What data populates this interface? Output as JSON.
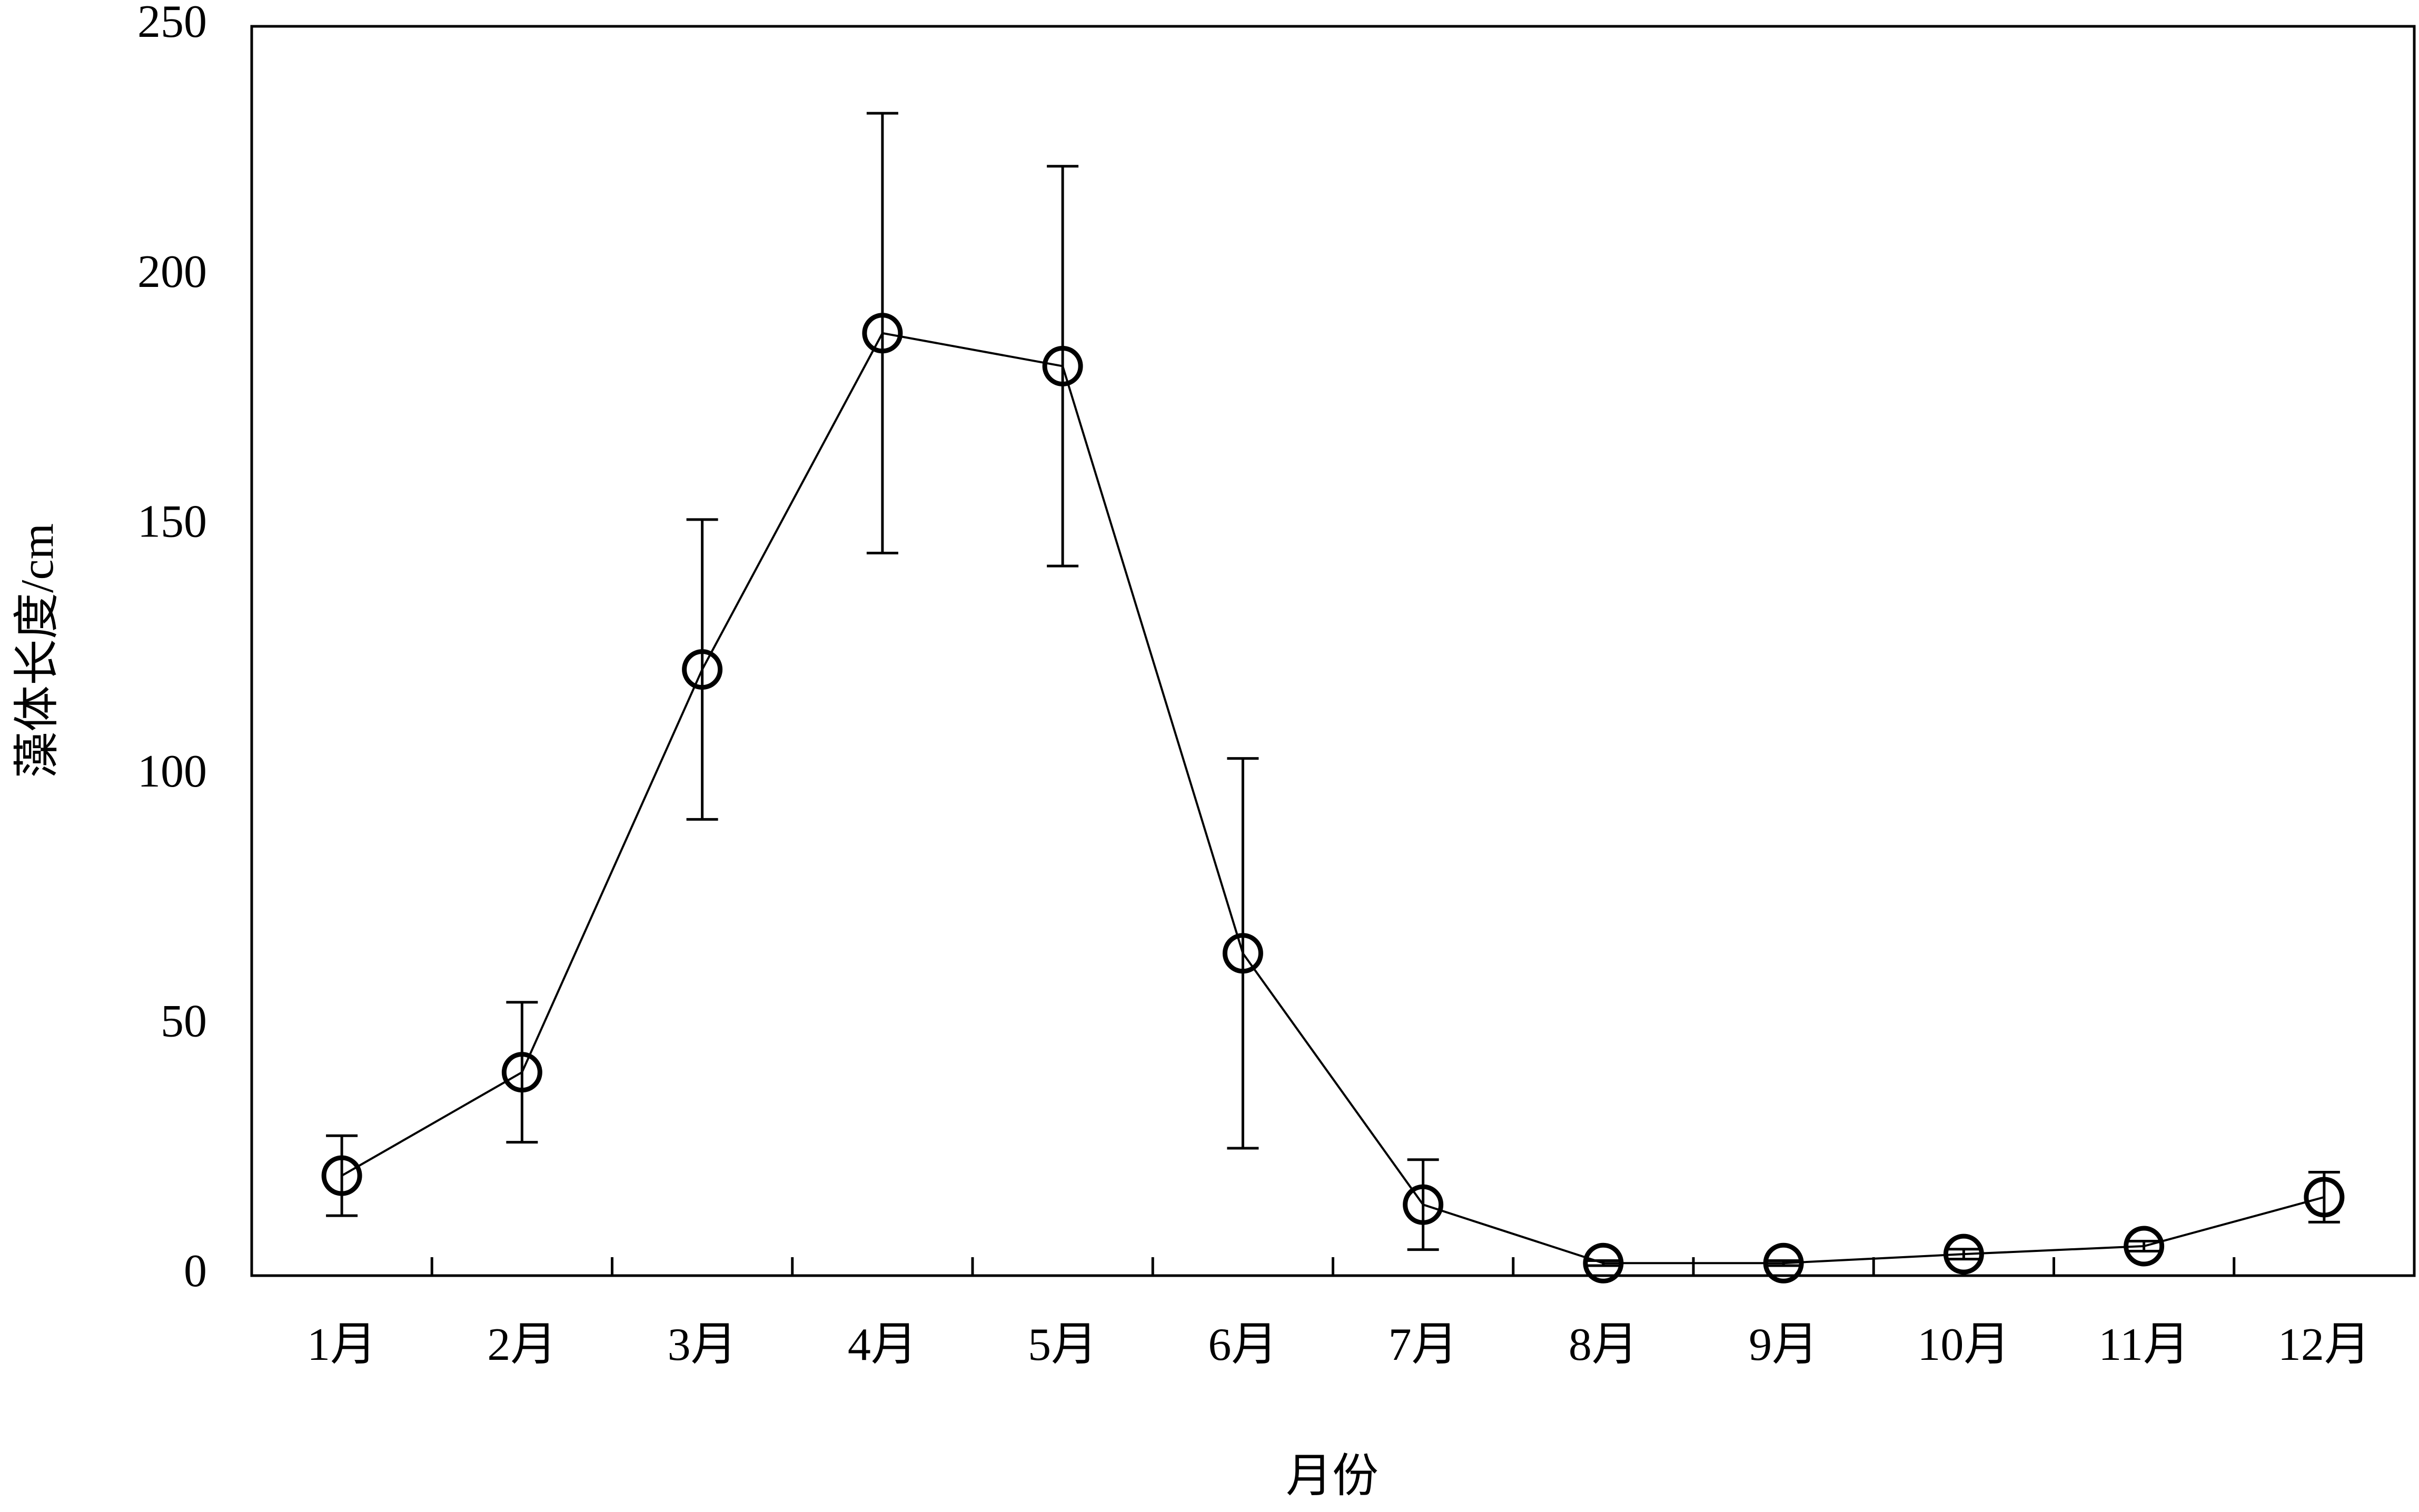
{
  "chart_data": {
    "type": "line",
    "x_label": "月份",
    "y_label": "藻体长度/cm",
    "categories": [
      "1月",
      "2月",
      "3月",
      "4月",
      "5月",
      "6月",
      "7月",
      "8月",
      "9月",
      "10月",
      "11月",
      "12月"
    ],
    "values": [
      20,
      40.7,
      121.3,
      188.6,
      182,
      64.5,
      14.2,
      2.5,
      2.5,
      4.3,
      5.9,
      15.7
    ],
    "errors": [
      8,
      14,
      30,
      44,
      40,
      39,
      9,
      0.5,
      0.5,
      1,
      1,
      5
    ],
    "color": "#000000",
    "ylim": [
      0,
      250
    ],
    "yticks": [
      0,
      50,
      100,
      150,
      200,
      250
    ],
    "grid": false
  }
}
